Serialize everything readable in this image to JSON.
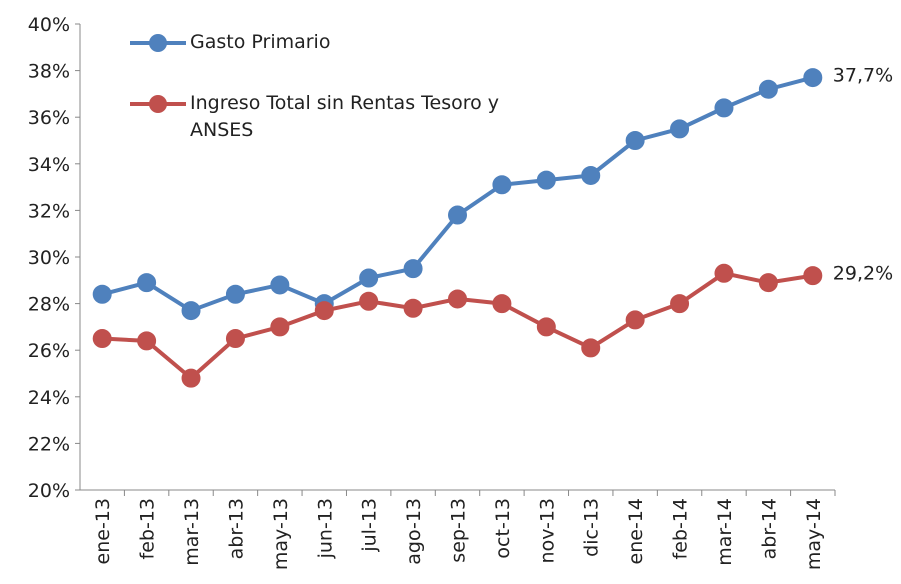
{
  "chart_data": {
    "type": "line",
    "categories": [
      "ene-13",
      "feb-13",
      "mar-13",
      "abr-13",
      "may-13",
      "jun-13",
      "jul-13",
      "ago-13",
      "sep-13",
      "oct-13",
      "nov-13",
      "dic-13",
      "ene-14",
      "feb-14",
      "mar-14",
      "abr-14",
      "may-14"
    ],
    "series": [
      {
        "name": "Gasto Primario",
        "color": "#4f81bd",
        "values": [
          28.4,
          28.9,
          27.7,
          28.4,
          28.8,
          28.0,
          29.1,
          29.5,
          31.8,
          33.1,
          33.3,
          33.5,
          35.0,
          35.5,
          36.4,
          37.2,
          37.7
        ],
        "value_labels": [
          null,
          null,
          null,
          null,
          null,
          null,
          null,
          null,
          null,
          null,
          null,
          null,
          null,
          null,
          null,
          null,
          "37,7%"
        ]
      },
      {
        "name": "Ingreso Total sin Rentas Tesoro y ANSES",
        "color": "#c0504d",
        "values": [
          26.5,
          26.4,
          24.8,
          26.5,
          27.0,
          27.7,
          28.1,
          27.8,
          28.2,
          28.0,
          27.0,
          26.1,
          27.3,
          28.0,
          29.3,
          28.9,
          29.2
        ],
        "value_labels": [
          null,
          null,
          null,
          null,
          null,
          null,
          null,
          null,
          null,
          null,
          null,
          null,
          null,
          null,
          null,
          null,
          "29,2%"
        ]
      }
    ],
    "ylim": [
      20,
      40
    ],
    "yticks": [
      {
        "value": 20,
        "label": "20%"
      },
      {
        "value": 22,
        "label": "22%"
      },
      {
        "value": 24,
        "label": "24%"
      },
      {
        "value": 26,
        "label": "26%"
      },
      {
        "value": 28,
        "label": "28%"
      },
      {
        "value": 30,
        "label": "30%"
      },
      {
        "value": 32,
        "label": "32%"
      },
      {
        "value": 34,
        "label": "34%"
      },
      {
        "value": 36,
        "label": "36%"
      },
      {
        "value": 38,
        "label": "38%"
      },
      {
        "value": 40,
        "label": "40%"
      }
    ],
    "grid": false
  }
}
